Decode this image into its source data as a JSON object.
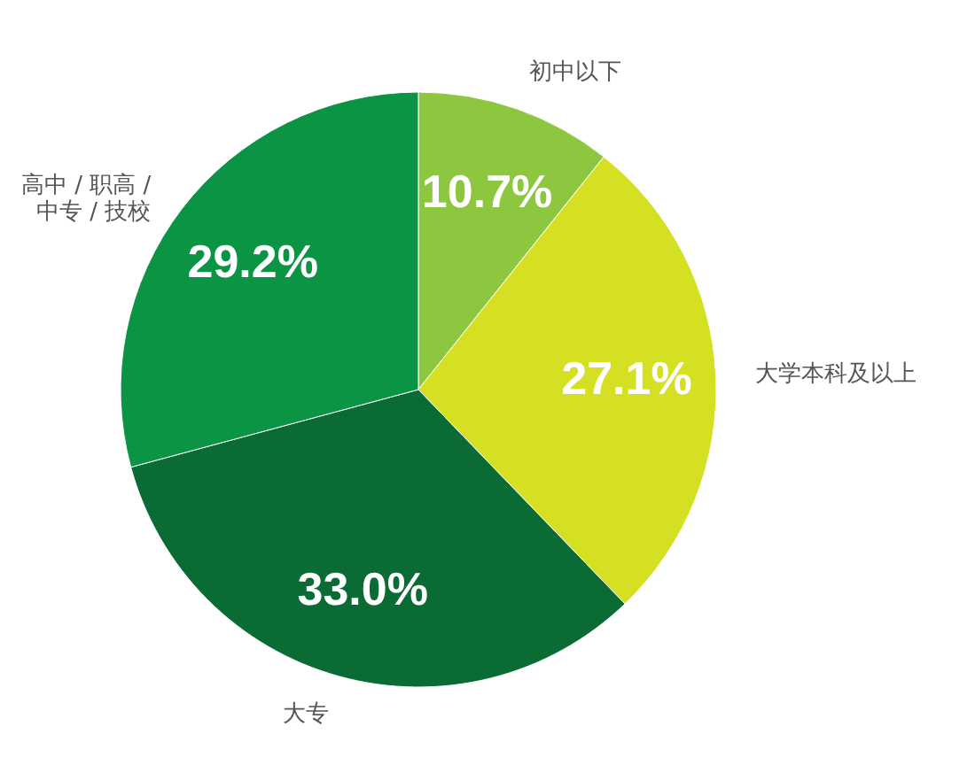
{
  "chart_data": {
    "type": "pie",
    "categories": [
      "初中以下",
      "大学本科及以上",
      "大专",
      "高中 / 职高 /\n中专 / 技校"
    ],
    "values": [
      10.7,
      27.1,
      33.0,
      29.2
    ],
    "colors": [
      "#8dc63f",
      "#d4e021",
      "#0b6b35",
      "#0a9444"
    ],
    "value_labels": [
      "10.7%",
      "27.1%",
      "33.0%",
      "29.2%"
    ]
  }
}
